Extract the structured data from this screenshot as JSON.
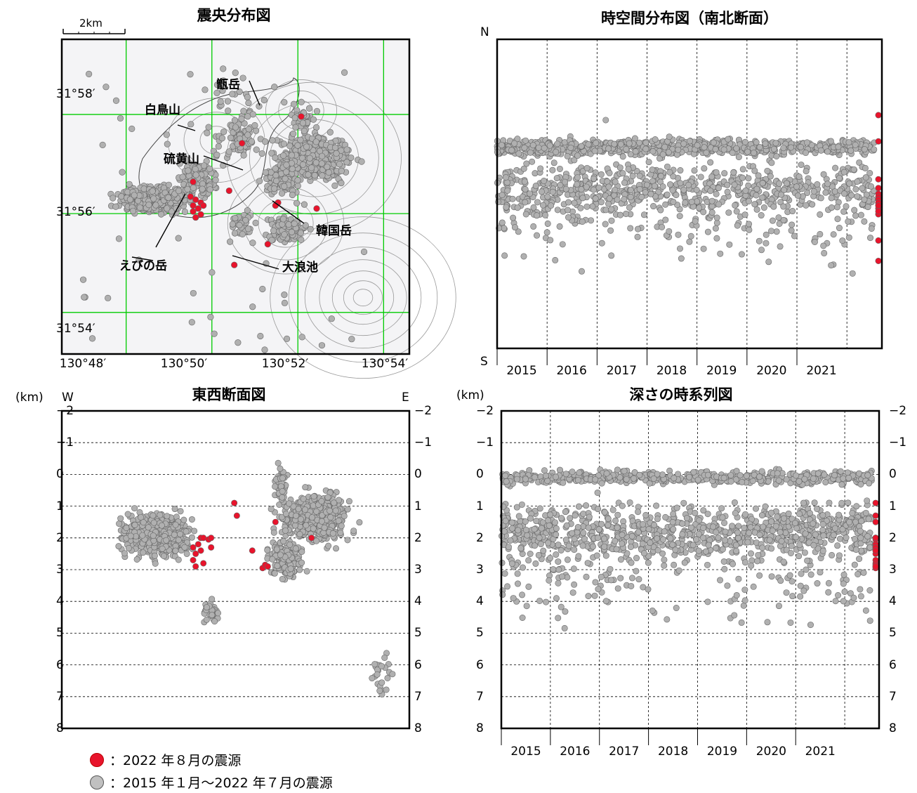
{
  "colors": {
    "past": "#b0b0b0",
    "recent": "#e8142c",
    "grid": "#00cc00",
    "contour": "#999999"
  },
  "legend": {
    "recent_label": "：2022 年８月の震源",
    "past_label": "：2015 年１月～2022 年７月の震源"
  },
  "chart_data": [
    {
      "id": "epicenter_map",
      "type": "scatter",
      "title": "震央分布図",
      "scale_label": "2km",
      "xticks": [
        "130°48′",
        "130°50′",
        "130°52′",
        "130°54′"
      ],
      "yticks": [
        "31°58′",
        "31°56′",
        "31°54′"
      ],
      "xlim": [
        130.775,
        130.91
      ],
      "ylim": [
        31.886,
        31.992
      ],
      "place_names": [
        "甑岳",
        "白鳥山",
        "硫黄山",
        "韓国岳",
        "えびの岳",
        "大浪池"
      ],
      "recent_points": [
        [
          130.825,
          31.939
        ],
        [
          130.826,
          31.936
        ],
        [
          130.827,
          31.938
        ],
        [
          130.826,
          31.934
        ],
        [
          130.828,
          31.935
        ],
        [
          130.829,
          31.937
        ],
        [
          130.83,
          31.936
        ],
        [
          130.827,
          31.932
        ],
        [
          130.829,
          31.933
        ],
        [
          130.826,
          31.944
        ],
        [
          130.84,
          31.941
        ],
        [
          130.845,
          31.957
        ],
        [
          130.859,
          31.937
        ],
        [
          130.858,
          31.936
        ],
        [
          130.868,
          31.966
        ],
        [
          130.874,
          31.935
        ],
        [
          130.855,
          31.923
        ],
        [
          130.842,
          31.916
        ]
      ],
      "past_clusters": [
        {
          "cx": 130.81,
          "cy": 31.938,
          "sx": 0.012,
          "sy": 0.004,
          "n": 420
        },
        {
          "cx": 130.828,
          "cy": 31.945,
          "sx": 0.006,
          "sy": 0.006,
          "n": 160
        },
        {
          "cx": 130.873,
          "cy": 31.952,
          "sx": 0.013,
          "sy": 0.007,
          "n": 420
        },
        {
          "cx": 130.86,
          "cy": 31.945,
          "sx": 0.006,
          "sy": 0.005,
          "n": 120
        },
        {
          "cx": 130.845,
          "cy": 31.958,
          "sx": 0.004,
          "sy": 0.004,
          "n": 60
        },
        {
          "cx": 130.862,
          "cy": 31.928,
          "sx": 0.007,
          "sy": 0.004,
          "n": 130
        },
        {
          "cx": 130.845,
          "cy": 31.93,
          "sx": 0.004,
          "sy": 0.004,
          "n": 40
        },
        {
          "cx": 130.868,
          "cy": 31.965,
          "sx": 0.006,
          "sy": 0.005,
          "n": 40
        },
        {
          "cx": 130.843,
          "cy": 31.965,
          "sx": 0.012,
          "sy": 0.014,
          "n": 60
        }
      ]
    },
    {
      "id": "ns_time_section",
      "type": "scatter",
      "title": "時空間分布図（南北断面）",
      "y_top_label": "N",
      "y_bottom_label": "S",
      "years": [
        "2015",
        "2016",
        "2017",
        "2018",
        "2019",
        "2020",
        "2021"
      ],
      "xlim": [
        2015.0,
        2022.7
      ],
      "ylim": [
        31.886,
        31.992
      ]
    },
    {
      "id": "ew_section",
      "type": "scatter",
      "title": "東西断面図",
      "unit_label": "(km)",
      "left_label": "W",
      "right_label": "E",
      "yticks": [
        "−2",
        "−1",
        "0",
        "1",
        "2",
        "3",
        "4",
        "5",
        "6",
        "7",
        "8"
      ],
      "ylim": [
        -2,
        8
      ],
      "xlim": [
        130.775,
        130.91
      ],
      "recent_points": [
        [
          130.826,
          2.3
        ],
        [
          130.826,
          2.7
        ],
        [
          130.827,
          2.5
        ],
        [
          130.827,
          2.9
        ],
        [
          130.828,
          2.2
        ],
        [
          130.829,
          2.0
        ],
        [
          130.829,
          2.4
        ],
        [
          130.83,
          2.0
        ],
        [
          130.83,
          2.8
        ],
        [
          130.832,
          2.05
        ],
        [
          130.833,
          2.0
        ],
        [
          130.833,
          2.3
        ],
        [
          130.842,
          0.9
        ],
        [
          130.843,
          1.3
        ],
        [
          130.849,
          2.4
        ],
        [
          130.853,
          2.95
        ],
        [
          130.854,
          2.85
        ],
        [
          130.855,
          2.9
        ],
        [
          130.858,
          1.5
        ],
        [
          130.872,
          2.0
        ]
      ]
    },
    {
      "id": "depth_time_series",
      "type": "scatter",
      "title": "深さの時系列図",
      "unit_label": "(km)",
      "yticks": [
        "−2",
        "−1",
        "0",
        "1",
        "2",
        "3",
        "4",
        "5",
        "6",
        "7",
        "8"
      ],
      "ylim": [
        -2,
        8
      ],
      "years": [
        "2015",
        "2016",
        "2017",
        "2018",
        "2019",
        "2020",
        "2021"
      ],
      "xlim": [
        2015.0,
        2022.7
      ]
    }
  ]
}
